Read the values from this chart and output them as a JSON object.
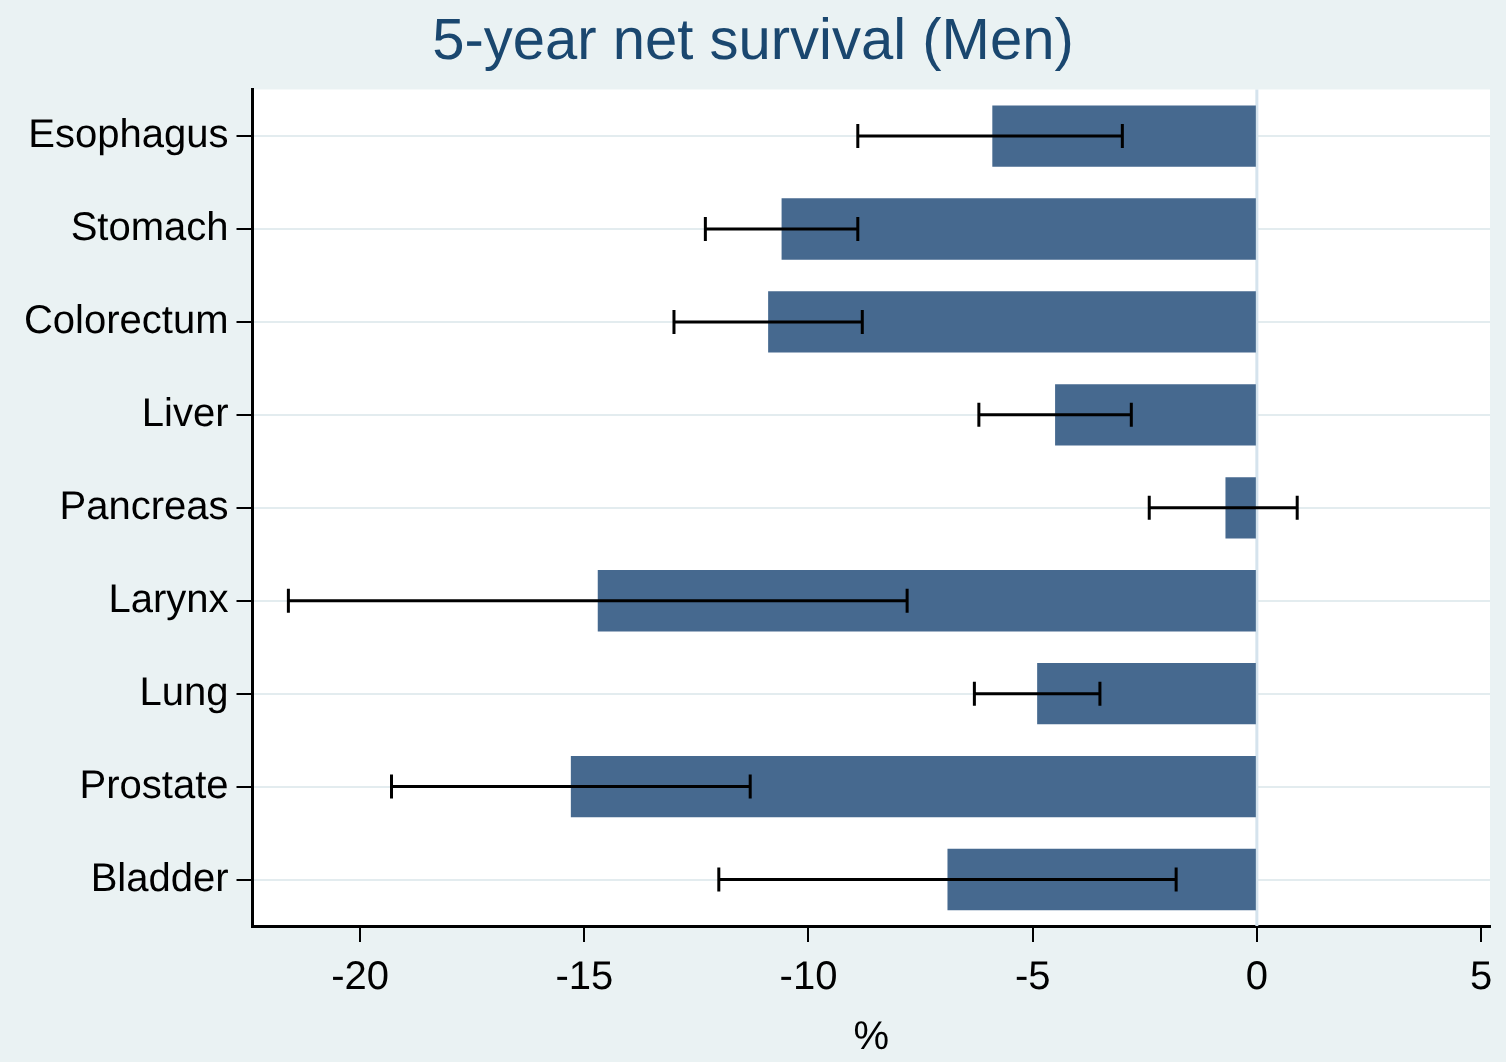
{
  "chart_data": {
    "type": "bar",
    "orientation": "horizontal",
    "title": "5-year net survival (Men)",
    "xlabel": "%",
    "categories": [
      "Esophagus",
      "Stomach",
      "Colorectum",
      "Liver",
      "Pancreas",
      "Larynx",
      "Lung",
      "Prostate",
      "Bladder"
    ],
    "values": [
      -5.9,
      -10.6,
      -10.9,
      -4.5,
      -0.7,
      -14.7,
      -4.9,
      -15.3,
      -6.9
    ],
    "errors": [
      [
        -8.9,
        -3.0
      ],
      [
        -12.3,
        -8.9
      ],
      [
        -13.0,
        -8.8
      ],
      [
        -6.2,
        -2.8
      ],
      [
        -2.4,
        0.9
      ],
      [
        -21.6,
        -7.8
      ],
      [
        -6.3,
        -3.5
      ],
      [
        -19.3,
        -11.3
      ],
      [
        -12.0,
        -1.8
      ]
    ],
    "color": "#46698f",
    "xlim": [
      -22.4,
      5.2
    ],
    "xticks": [
      -20,
      -15,
      -10,
      -5,
      0,
      5
    ],
    "ref_lines": [
      {
        "axis": "x",
        "value": 0,
        "color": "#d5e3ed"
      }
    ],
    "grid": "y",
    "legend": false
  }
}
